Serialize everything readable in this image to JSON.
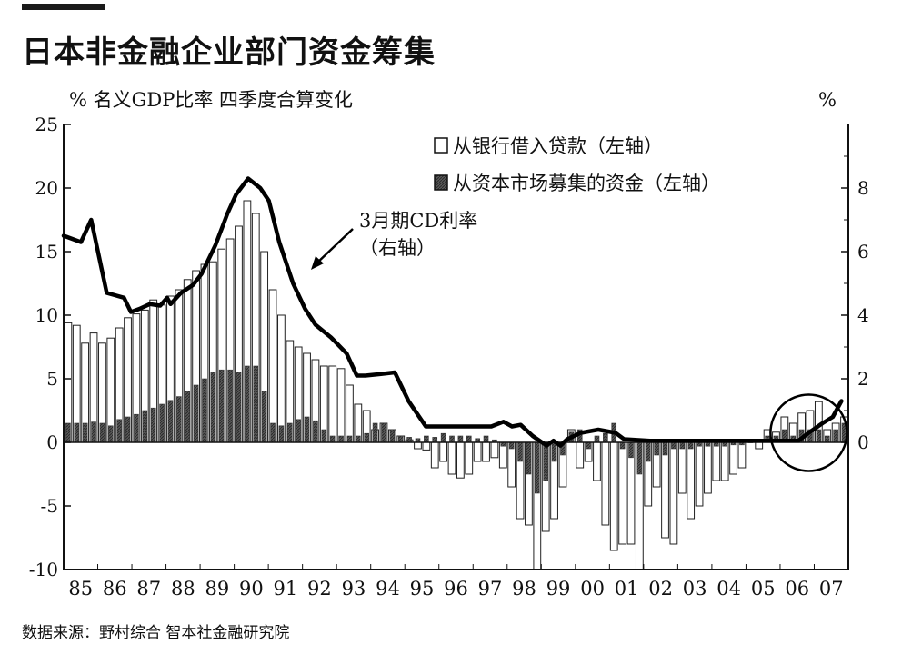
{
  "page": {
    "title": "日本非金融企业部门资金筹集",
    "source": "数据来源：野村综合 智本社金融研究院"
  },
  "chart_data": {
    "type": "bar",
    "title": "日本非金融企业部门资金筹集",
    "left_axis_label": "% 名义GDP比率 四季度合算变化",
    "right_axis_label": "%",
    "left_ylim": [
      -10,
      25
    ],
    "left_ticks": [
      -10,
      -5,
      0,
      5,
      10,
      15,
      20,
      25
    ],
    "left_tick_labels": [
      "-10",
      "-5",
      "0",
      "5",
      "10",
      "15",
      "20",
      "25"
    ],
    "right_ylim": [
      -4,
      10
    ],
    "right_ticks": [
      0,
      2,
      4,
      6,
      8
    ],
    "right_tick_labels": [
      "0",
      "2",
      "4",
      "6",
      "8"
    ],
    "x_labels": [
      "85",
      "86",
      "87",
      "88",
      "89",
      "90",
      "91",
      "92",
      "93",
      "94",
      "95",
      "96",
      "97",
      "98",
      "99",
      "00",
      "01",
      "02",
      "03",
      "04",
      "05",
      "06",
      "07"
    ],
    "x_range": [
      1985.0,
      2007.75
    ],
    "legend": [
      {
        "name": "从银行借入贷款（左轴）",
        "style": "white"
      },
      {
        "name": "从资本市场募集的资金（左轴）",
        "style": "dark"
      }
    ],
    "annotation": {
      "line1": "3月期CD利率",
      "line2": "（右轴）"
    },
    "bank_loans": [
      9.4,
      9.2,
      7.8,
      8.6,
      7.8,
      8.2,
      9.0,
      9.8,
      10.1,
      10.4,
      11.2,
      10.8,
      11.5,
      12.0,
      12.8,
      13.5,
      14.0,
      14.2,
      15.2,
      16.0,
      17.0,
      19.0,
      18.0,
      15.0,
      12.0,
      10.0,
      8.0,
      7.5,
      7.0,
      6.5,
      6.0,
      6.0,
      5.8,
      4.5,
      3.0,
      2.5,
      1.0,
      1.5,
      1.0,
      0.5,
      0.2,
      -0.5,
      -0.6,
      -2.0,
      -1.5,
      -2.5,
      -2.8,
      -2.5,
      -1.5,
      -1.5,
      -1.2,
      -2.0,
      -3.5,
      -6.0,
      -6.5,
      -10.0,
      -7.0,
      -6.0,
      -3.5,
      1.0,
      -2.0,
      -1.5,
      -3.0,
      -6.5,
      -8.5,
      -8.0,
      -8.0,
      -10.0,
      -5.0,
      -3.5,
      -7.5,
      -8.0,
      -4.0,
      -6.0,
      -5.0,
      -4.0,
      -3.0,
      -3.0,
      -2.5,
      -2.0,
      0.0,
      -0.5,
      1.0,
      0.8,
      2.0,
      1.5,
      2.3,
      2.5,
      3.2,
      1.0,
      1.5,
      2.0
    ],
    "capital_market": [
      1.5,
      1.5,
      1.5,
      1.6,
      1.5,
      1.3,
      1.8,
      2.0,
      2.2,
      2.5,
      2.7,
      3.0,
      3.3,
      3.6,
      4.0,
      4.5,
      5.0,
      5.5,
      5.7,
      5.7,
      5.5,
      6.0,
      6.0,
      4.0,
      1.5,
      1.3,
      1.5,
      1.8,
      2.0,
      1.7,
      1.0,
      0.5,
      0.5,
      0.5,
      0.5,
      0.7,
      1.5,
      1.5,
      1.0,
      0.5,
      0.4,
      0.3,
      0.5,
      0.4,
      0.7,
      0.5,
      0.5,
      0.5,
      0.3,
      0.5,
      0.2,
      -0.3,
      -0.5,
      -1.5,
      -2.5,
      -4.0,
      -3.0,
      -1.5,
      -1.0,
      0.8,
      1.0,
      -0.5,
      0.5,
      0.7,
      1.5,
      -0.5,
      -1.2,
      -2.5,
      -1.5,
      -1.0,
      -1.0,
      -0.5,
      -0.5,
      -0.5,
      -0.3,
      -0.3,
      -0.3,
      -0.3,
      -0.2,
      -0.2,
      0.0,
      0.2,
      0.5,
      0.5,
      1.0,
      0.5,
      1.0,
      1.0,
      1.0,
      0.5,
      1.0,
      1.5
    ],
    "cd_rate": [
      {
        "x": 1985.0,
        "y": 6.5
      },
      {
        "x": 1985.5,
        "y": 6.3
      },
      {
        "x": 1985.8,
        "y": 7.0
      },
      {
        "x": 1986.25,
        "y": 4.7
      },
      {
        "x": 1986.75,
        "y": 4.55
      },
      {
        "x": 1986.95,
        "y": 4.1
      },
      {
        "x": 1987.2,
        "y": 4.2
      },
      {
        "x": 1987.5,
        "y": 4.35
      },
      {
        "x": 1987.8,
        "y": 4.3
      },
      {
        "x": 1988.0,
        "y": 4.55
      },
      {
        "x": 1988.1,
        "y": 4.35
      },
      {
        "x": 1988.4,
        "y": 4.7
      },
      {
        "x": 1988.75,
        "y": 4.95
      },
      {
        "x": 1989.0,
        "y": 5.3
      },
      {
        "x": 1989.4,
        "y": 6.2
      },
      {
        "x": 1989.75,
        "y": 7.2
      },
      {
        "x": 1990.0,
        "y": 7.8
      },
      {
        "x": 1990.35,
        "y": 8.3
      },
      {
        "x": 1990.7,
        "y": 8.0
      },
      {
        "x": 1990.95,
        "y": 7.6
      },
      {
        "x": 1991.25,
        "y": 6.3
      },
      {
        "x": 1991.65,
        "y": 5.0
      },
      {
        "x": 1992.0,
        "y": 4.2
      },
      {
        "x": 1992.3,
        "y": 3.7
      },
      {
        "x": 1992.75,
        "y": 3.3
      },
      {
        "x": 1993.2,
        "y": 2.8
      },
      {
        "x": 1993.5,
        "y": 2.1
      },
      {
        "x": 1993.75,
        "y": 2.1
      },
      {
        "x": 1994.2,
        "y": 2.15
      },
      {
        "x": 1994.6,
        "y": 2.2
      },
      {
        "x": 1995.0,
        "y": 1.3
      },
      {
        "x": 1995.5,
        "y": 0.5
      },
      {
        "x": 1996.0,
        "y": 0.5
      },
      {
        "x": 1996.5,
        "y": 0.5
      },
      {
        "x": 1997.0,
        "y": 0.5
      },
      {
        "x": 1997.4,
        "y": 0.5
      },
      {
        "x": 1997.75,
        "y": 0.65
      },
      {
        "x": 1998.0,
        "y": 0.5
      },
      {
        "x": 1998.25,
        "y": 0.55
      },
      {
        "x": 1998.6,
        "y": 0.2
      },
      {
        "x": 1999.0,
        "y": -0.1
      },
      {
        "x": 1999.2,
        "y": 0.05
      },
      {
        "x": 1999.4,
        "y": -0.1
      },
      {
        "x": 1999.6,
        "y": 0.1
      },
      {
        "x": 2000.0,
        "y": 0.3
      },
      {
        "x": 2000.5,
        "y": 0.4
      },
      {
        "x": 2001.0,
        "y": 0.3
      },
      {
        "x": 2001.25,
        "y": 0.1
      },
      {
        "x": 2002.0,
        "y": 0.05
      },
      {
        "x": 2003.0,
        "y": 0.05
      },
      {
        "x": 2004.0,
        "y": 0.05
      },
      {
        "x": 2005.0,
        "y": 0.05
      },
      {
        "x": 2005.5,
        "y": 0.05
      },
      {
        "x": 2006.0,
        "y": 0.05
      },
      {
        "x": 2006.3,
        "y": 0.05
      },
      {
        "x": 2006.6,
        "y": 0.3
      },
      {
        "x": 2007.0,
        "y": 0.6
      },
      {
        "x": 2007.3,
        "y": 0.8
      },
      {
        "x": 2007.55,
        "y": 1.3
      }
    ],
    "grid": false,
    "legend_position": "top-right"
  }
}
